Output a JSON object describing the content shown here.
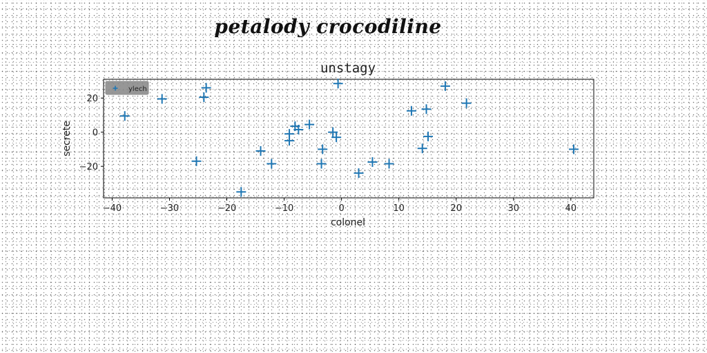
{
  "figure_title": "petalody crocodiline",
  "chart_data": {
    "type": "scatter",
    "title": "unstagy",
    "xlabel": "colonel",
    "ylabel": "secrete",
    "xlim": [
      -41.5,
      44
    ],
    "ylim": [
      -38.5,
      31
    ],
    "xticks": [
      -40,
      -30,
      -20,
      -10,
      0,
      10,
      20,
      30,
      40
    ],
    "yticks": [
      -20,
      0,
      20
    ],
    "grid": false,
    "legend_position": "top-left",
    "series": [
      {
        "name": "ylech",
        "marker": "plus",
        "color": "#1f77b4",
        "x": [
          -37.8,
          -31.3,
          -25.3,
          -24.0,
          -23.6,
          -17.5,
          -14.1,
          -12.2,
          -9.1,
          -9.1,
          -8.1,
          -7.5,
          -5.6,
          -3.5,
          -3.3,
          -1.5,
          -0.9,
          -0.6,
          3.0,
          5.4,
          8.3,
          12.2,
          14.1,
          14.8,
          15.1,
          18.1,
          21.8,
          40.5
        ],
        "y": [
          9.5,
          19.5,
          -17.0,
          20.5,
          26.0,
          -35.0,
          -11.0,
          -18.5,
          -1.0,
          -5.0,
          3.5,
          1.5,
          4.5,
          -18.5,
          -10.0,
          0.0,
          -3.0,
          28.5,
          -24.0,
          -17.5,
          -18.5,
          12.5,
          -9.5,
          13.5,
          -2.5,
          27.0,
          17.0,
          -10.0
        ]
      }
    ]
  }
}
